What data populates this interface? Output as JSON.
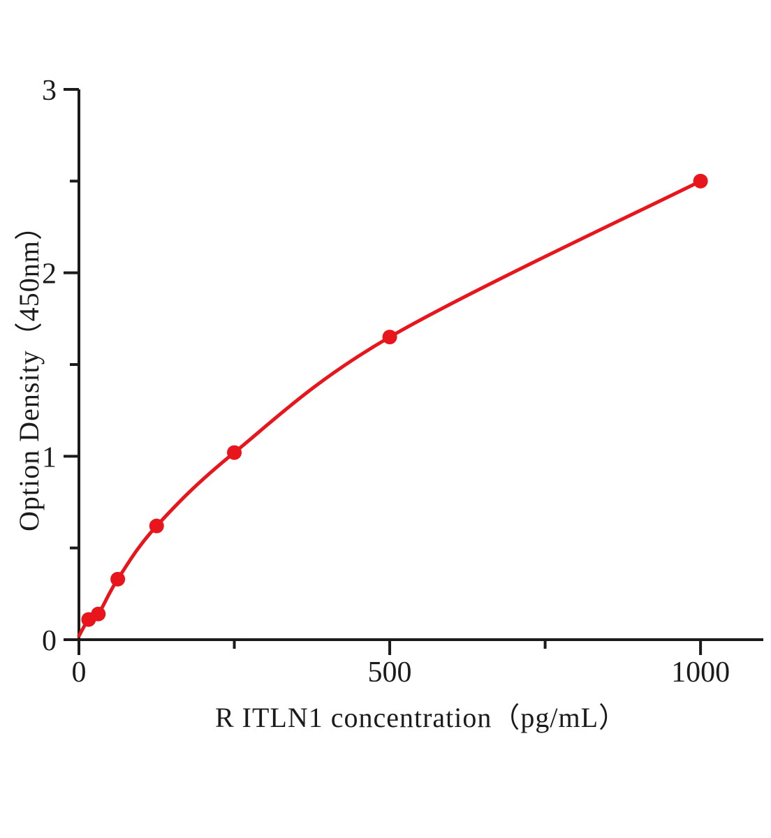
{
  "chart_data": {
    "type": "line",
    "subtype": "elisa-standard-curve-scatter-with-fitted-line",
    "title": "",
    "xlabel": "R ITLN1  concentration（pg/mL）",
    "ylabel": "Option Density（450nm）",
    "x": [
      15.6,
      31.2,
      62.5,
      125,
      250,
      500,
      1000
    ],
    "y": [
      0.11,
      0.14,
      0.33,
      0.62,
      1.02,
      1.65,
      2.5
    ],
    "curve_start": {
      "x": 0,
      "y": 0.02
    },
    "xlim": [
      0,
      1101
    ],
    "ylim": [
      0,
      3
    ],
    "x_ticks_major": [
      0,
      500,
      1000
    ],
    "x_ticks_minor": [
      250,
      750
    ],
    "y_ticks_major": [
      0,
      1,
      2,
      3
    ],
    "y_ticks_minor": [
      0.5,
      1.5,
      2.5
    ],
    "legend": null,
    "grid": false,
    "colors": {
      "curve": "#e8151c",
      "marker": "#e8151c",
      "axis": "#1b1b1b",
      "tick_text": "#1b1b1b",
      "background": "#ffffff"
    }
  }
}
